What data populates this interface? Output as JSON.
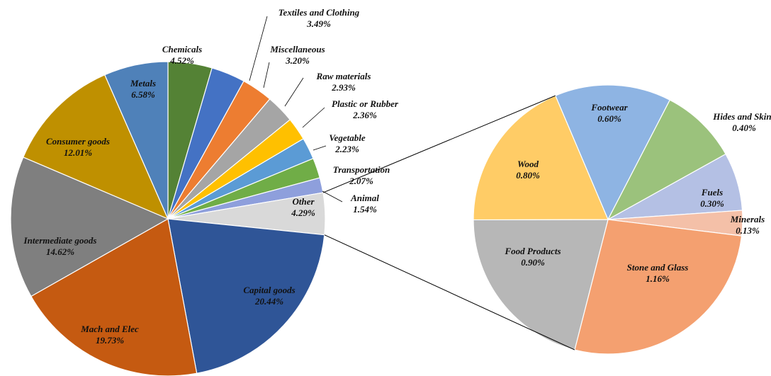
{
  "chart_data": [
    {
      "type": "pie",
      "categories": [
        "Chemicals",
        "Textiles and Clothing",
        "Miscellaneous",
        "Raw materials",
        "Plastic or Rubber",
        "Vegetable",
        "Transportation",
        "Animal",
        "Other",
        "Capital goods",
        "Mach and Elec",
        "Intermediate goods",
        "Consumer goods",
        "Metals"
      ],
      "values": [
        4.52,
        3.49,
        3.2,
        2.93,
        2.36,
        2.23,
        2.07,
        1.54,
        4.29,
        20.44,
        19.73,
        14.62,
        12.01,
        6.58
      ],
      "value_labels": [
        "4.52%",
        "3.49%",
        "3.20%",
        "2.93%",
        "2.36%",
        "2.23%",
        "2.07%",
        "1.54%",
        "4.29%",
        "20.44%",
        "19.73%",
        "14.62%",
        "12.01%",
        "6.58%"
      ],
      "colors": [
        "#548235",
        "#4472c4",
        "#ed7d31",
        "#a5a5a5",
        "#ffc000",
        "#5b9bd5",
        "#70ad47",
        "#8e9fdc",
        "#d9d9d9",
        "#2f5597",
        "#c55a11",
        "#7f7f7f",
        "#bf9000",
        "#4f81b9"
      ]
    },
    {
      "type": "pie",
      "categories": [
        "Footwear",
        "Hides and Skins",
        "Fuels",
        "Minerals",
        "Stone and Glass",
        "Food Products",
        "Wood"
      ],
      "values": [
        0.6,
        0.4,
        0.3,
        0.13,
        1.16,
        0.9,
        0.8
      ],
      "value_labels": [
        "0.60%",
        "0.40%",
        "0.30%",
        "0.13%",
        "1.16%",
        "0.90%",
        "0.80%"
      ],
      "colors": [
        "#8eb4e3",
        "#9bc27c",
        "#b4c0e4",
        "#f4c0a8",
        "#f4a070",
        "#b7b7b7",
        "#ffcc66"
      ]
    }
  ]
}
